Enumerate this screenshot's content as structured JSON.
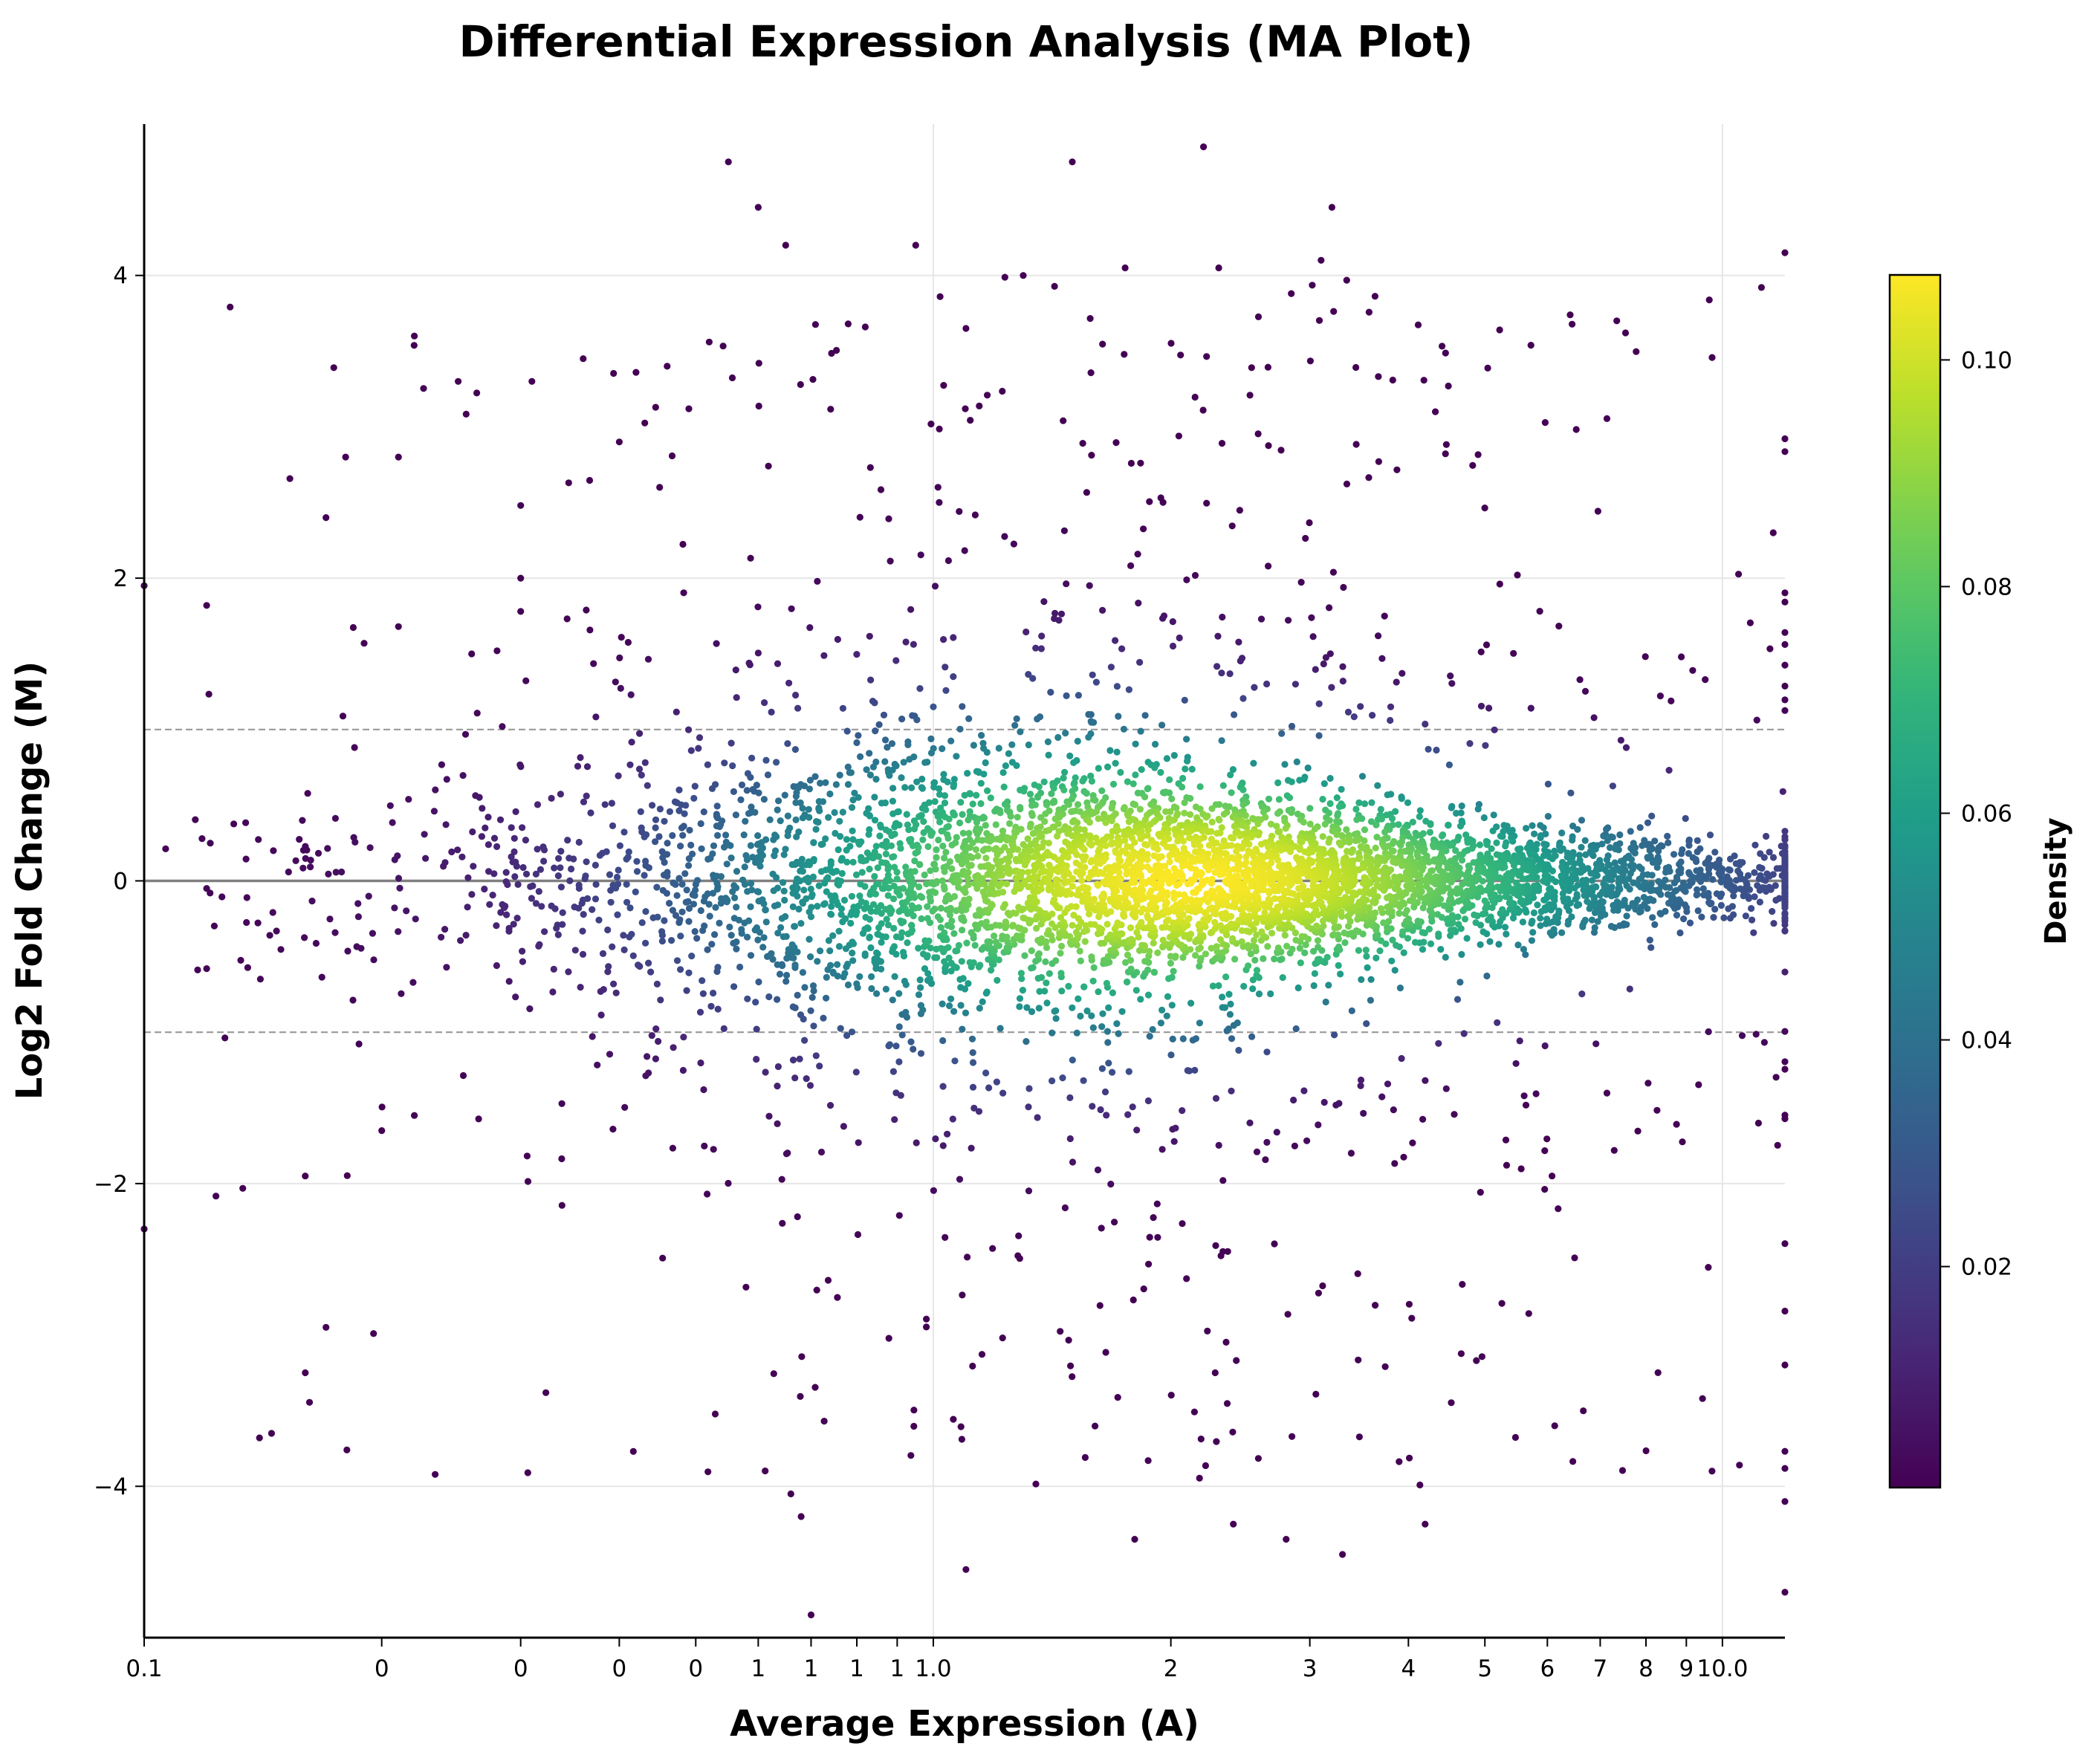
{
  "chart_data": {
    "type": "scatter",
    "title": "Differential Expression Analysis (MA Plot)",
    "xlabel": "Average Expression (A)",
    "ylabel": "Log2 Fold Change (M)",
    "xscale": "log",
    "xlim": [
      0.1,
      12
    ],
    "ylim": [
      -5,
      5
    ],
    "grid": true,
    "x_ticks": [
      {
        "value": 0.1,
        "label": "0.1"
      },
      {
        "value": 0.2,
        "label": "0"
      },
      {
        "value": 0.3,
        "label": "0"
      },
      {
        "value": 0.4,
        "label": "0"
      },
      {
        "value": 0.5,
        "label": "0"
      },
      {
        "value": 0.6,
        "label": "1"
      },
      {
        "value": 0.7,
        "label": "1"
      },
      {
        "value": 0.8,
        "label": "1"
      },
      {
        "value": 0.9,
        "label": "1"
      },
      {
        "value": 1.0,
        "label": "1.0"
      },
      {
        "value": 2,
        "label": "2"
      },
      {
        "value": 3,
        "label": "3"
      },
      {
        "value": 4,
        "label": "4"
      },
      {
        "value": 5,
        "label": "5"
      },
      {
        "value": 6,
        "label": "6"
      },
      {
        "value": 7,
        "label": "7"
      },
      {
        "value": 8,
        "label": "8"
      },
      {
        "value": 9,
        "label": "9"
      },
      {
        "value": 10,
        "label": "10.0"
      }
    ],
    "y_ticks": [
      {
        "value": -4,
        "label": "−4"
      },
      {
        "value": -2,
        "label": "−2"
      },
      {
        "value": 0,
        "label": "0"
      },
      {
        "value": 2,
        "label": "2"
      },
      {
        "value": 4,
        "label": "4"
      }
    ],
    "reference_lines": [
      {
        "y": 0,
        "style": "solid",
        "color": "#808080"
      },
      {
        "y": 1,
        "style": "dashed",
        "color": "#999999"
      },
      {
        "y": -1,
        "style": "dashed",
        "color": "#999999"
      }
    ],
    "colorbar": {
      "label": "Density",
      "colormap": "viridis",
      "range": [
        0.0005,
        0.1075
      ],
      "ticks": [
        {
          "value": 0.02,
          "label": "0.02"
        },
        {
          "value": 0.04,
          "label": "0.04"
        },
        {
          "value": 0.06,
          "label": "0.06"
        },
        {
          "value": 0.08,
          "label": "0.08"
        },
        {
          "value": 0.1,
          "label": "0.10"
        }
      ]
    },
    "points": [
      [
        2.2,
        4.85
      ],
      [
        0.55,
        4.75
      ],
      [
        1.5,
        4.75
      ],
      [
        0.6,
        4.45
      ],
      [
        3.2,
        4.45
      ],
      [
        0.65,
        4.2
      ],
      [
        0.95,
        4.2
      ],
      [
        12,
        4.15
      ],
      [
        3.1,
        4.1
      ],
      [
        2.3,
        4.05
      ],
      [
        1.75,
        4.05
      ],
      [
        1.3,
        4.0
      ],
      [
        0.1,
        1.95
      ],
      [
        0.1,
        -2.3
      ],
      [
        0.12,
        1.82
      ],
      [
        0.12,
        -0.05
      ],
      [
        0.12,
        -0.58
      ],
      [
        0.14,
        -3.68
      ],
      [
        0.145,
        -3.65
      ],
      [
        0.22,
        3.6
      ],
      [
        0.25,
        3.3
      ],
      [
        0.18,
        2.8
      ],
      [
        0.21,
        2.8
      ],
      [
        0.17,
        2.4
      ],
      [
        0.36,
        3.45
      ],
      [
        0.7,
        -4.85
      ],
      [
        1.1,
        -4.55
      ],
      [
        1.8,
        -4.35
      ],
      [
        2.8,
        -4.35
      ],
      [
        3.3,
        -4.45
      ],
      [
        4.2,
        -4.25
      ],
      [
        2.4,
        -4.25
      ],
      [
        0.66,
        -4.05
      ],
      [
        0.68,
        -4.2
      ],
      [
        12,
        -4.7
      ],
      [
        12,
        -4.1
      ],
      [
        9.7,
        -3.9
      ],
      [
        0.16,
        -3.25
      ],
      [
        0.17,
        -2.95
      ],
      [
        0.16,
        -1.95
      ],
      [
        0.2,
        -1.65
      ],
      [
        0.22,
        -1.55
      ],
      [
        0.21,
        1.68
      ],
      [
        0.19,
        1.57
      ],
      [
        0.26,
        1.5
      ],
      [
        0.28,
        1.52
      ],
      [
        0.3,
        1.78
      ],
      [
        0.3,
        2.0
      ],
      [
        0.3,
        2.48
      ],
      [
        0.31,
        3.3
      ],
      [
        0.4,
        2.9
      ],
      [
        0.45,
        2.6
      ],
      [
        0.42,
        3.36
      ],
      [
        0.46,
        3.4
      ],
      [
        0.52,
        3.56
      ],
      [
        0.78,
        3.68
      ],
      [
        0.82,
        3.66
      ],
      [
        1.02,
        3.86
      ],
      [
        1.1,
        3.65
      ]
    ]
  }
}
